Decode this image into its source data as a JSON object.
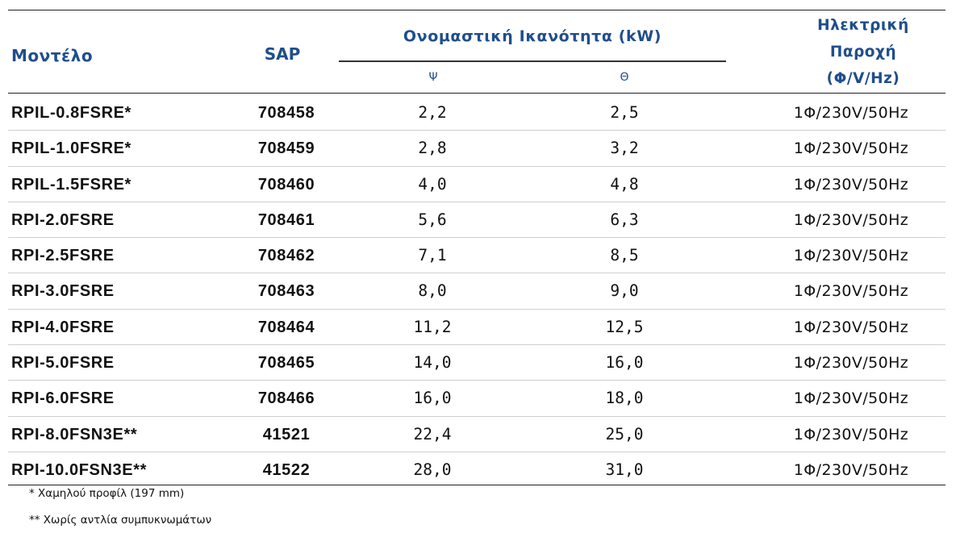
{
  "header": {
    "model": "Μοντέλο",
    "sap": "SAP",
    "capacity": "Ονομαστική Ικανότητα (kW)",
    "cooling": "Ψ",
    "heating": "Θ",
    "supply_line1": "Ηλεκτρική",
    "supply_line2": "Παροχή",
    "supply_line3": "(Φ/V/Hz)"
  },
  "rows": [
    {
      "model": "RPIL-0.8FSRE*",
      "sap": "708458",
      "cooling": "2,2",
      "heating": "2,5",
      "supply": "1Φ/230V/50Hz"
    },
    {
      "model": "RPIL-1.0FSRE*",
      "sap": "708459",
      "cooling": "2,8",
      "heating": "3,2",
      "supply": "1Φ/230V/50Hz"
    },
    {
      "model": "RPIL-1.5FSRE*",
      "sap": "708460",
      "cooling": "4,0",
      "heating": "4,8",
      "supply": "1Φ/230V/50Hz"
    },
    {
      "model": "RPI-2.0FSRE",
      "sap": "708461",
      "cooling": "5,6",
      "heating": "6,3",
      "supply": "1Φ/230V/50Hz"
    },
    {
      "model": "RPI-2.5FSRE",
      "sap": "708462",
      "cooling": "7,1",
      "heating": "8,5",
      "supply": "1Φ/230V/50Hz"
    },
    {
      "model": "RPI-3.0FSRE",
      "sap": "708463",
      "cooling": "8,0",
      "heating": "9,0",
      "supply": "1Φ/230V/50Hz"
    },
    {
      "model": "RPI-4.0FSRE",
      "sap": "708464",
      "cooling": "11,2",
      "heating": "12,5",
      "supply": "1Φ/230V/50Hz"
    },
    {
      "model": "RPI-5.0FSRE",
      "sap": "708465",
      "cooling": "14,0",
      "heating": "16,0",
      "supply": "1Φ/230V/50Hz"
    },
    {
      "model": "RPI-6.0FSRE",
      "sap": "708466",
      "cooling": "16,0",
      "heating": "18,0",
      "supply": "1Φ/230V/50Hz"
    },
    {
      "model": "RPI-8.0FSN3E**",
      "sap": "41521",
      "cooling": "22,4",
      "heating": "25,0",
      "supply": "1Φ/230V/50Hz"
    },
    {
      "model": "RPI-10.0FSN3E**",
      "sap": "41522",
      "cooling": "28,0",
      "heating": "31,0",
      "supply": "1Φ/230V/50Hz"
    }
  ],
  "notes": {
    "low_profile": "* Χαμηλού προφίλ (197 mm)",
    "no_pump": "** Χωρίς αντλία συμπυκνωμάτων"
  },
  "colors": {
    "header_text": "#1f4e8c",
    "body_text": "#111111",
    "rule": "#222222",
    "row_separator": "#cfcfcf"
  }
}
